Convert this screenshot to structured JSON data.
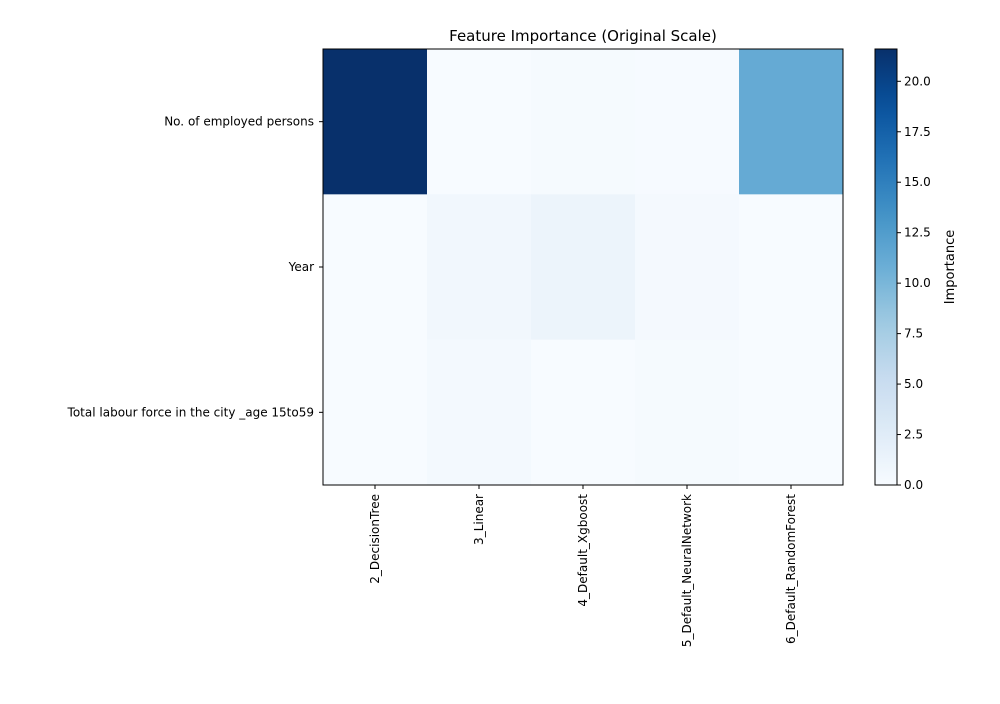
{
  "chart_data": {
    "type": "heatmap",
    "title": "Feature Importance (Original Scale)",
    "xlabel": "",
    "ylabel": "",
    "x_categories": [
      "2_DecisionTree",
      "3_Linear",
      "4_Default_Xgboost",
      "5_Default_NeuralNetwork",
      "6_Default_RandomForest"
    ],
    "y_categories": [
      "No. of employed persons",
      "Year",
      "Total labour force in the city _age 15to59"
    ],
    "values": [
      [
        21.6,
        0.05,
        0.25,
        0.15,
        11.2
      ],
      [
        0.02,
        0.6,
        1.2,
        0.3,
        0.05
      ],
      [
        0.05,
        0.4,
        0.01,
        0.2,
        0.03
      ]
    ],
    "colormap": "Blues",
    "colorbar": {
      "label": "Importance",
      "range": [
        0.0,
        21.6
      ],
      "ticks": [
        0.0,
        2.5,
        5.0,
        7.5,
        10.0,
        12.5,
        15.0,
        17.5,
        20.0
      ],
      "tick_labels": [
        "0.0",
        "2.5",
        "5.0",
        "7.5",
        "10.0",
        "12.5",
        "15.0",
        "17.5",
        "20.0"
      ]
    }
  }
}
